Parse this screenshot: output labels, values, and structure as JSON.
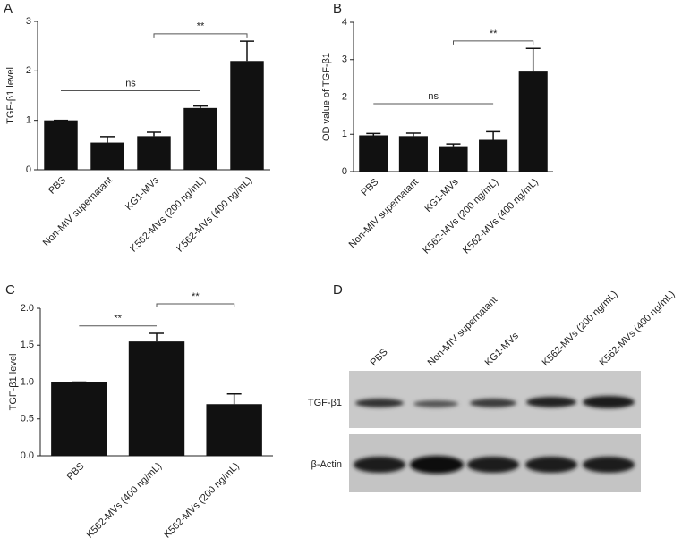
{
  "chart_data": [
    {
      "type": "bar",
      "panel_label": "A",
      "ylabel": "TGF-β1 level",
      "categories": [
        "PBS",
        "Non-MIV supernatant",
        "KG1-MVs",
        "K562-MVs (200 ng/mL)",
        "K562-MVs (400 ng/mL)"
      ],
      "values": [
        1.0,
        0.55,
        0.68,
        1.25,
        2.2
      ],
      "errors": [
        0,
        0.12,
        0.08,
        0.04,
        0.4
      ],
      "color": "#111111",
      "ylim": [
        0,
        3
      ],
      "yticks": [
        0,
        1,
        2,
        3
      ],
      "annotations": [
        {
          "text": "ns",
          "start": 0,
          "end": 3
        },
        {
          "text": "**",
          "start": 2,
          "end": 4
        }
      ]
    },
    {
      "type": "bar",
      "panel_label": "B",
      "ylabel": "OD value of TGF-β1",
      "categories": [
        "PBS",
        "Non-MIV supernatant",
        "KG1-MVs",
        "K562-MVs (200 ng/mL)",
        "K562-MVs (400 ng/mL)"
      ],
      "values": [
        0.97,
        0.95,
        0.68,
        0.85,
        2.68
      ],
      "errors": [
        0.05,
        0.08,
        0.06,
        0.22,
        0.62
      ],
      "color": "#111111",
      "ylim": [
        0,
        4
      ],
      "yticks": [
        0,
        1,
        2,
        3,
        4
      ],
      "annotations": [
        {
          "text": "ns",
          "start": 0,
          "end": 3
        },
        {
          "text": "**",
          "start": 2,
          "end": 4
        }
      ]
    },
    {
      "type": "bar",
      "panel_label": "C",
      "ylabel": "TGF-β1 level",
      "categories": [
        "PBS",
        "K562-MVs (400 ng/mL)",
        "K562-MVs (200 ng/mL)"
      ],
      "values": [
        1.0,
        1.55,
        0.7
      ],
      "errors": [
        0,
        0.11,
        0.14
      ],
      "color": "#111111",
      "ylim": [
        0,
        2
      ],
      "yticks": [
        {
          "value": 0,
          "label": "0.0"
        },
        {
          "value": 0.5,
          "label": "0.5"
        },
        {
          "value": 1,
          "label": "1.0"
        },
        {
          "value": 1.5,
          "label": "1.5"
        },
        {
          "value": 2,
          "label": "2.0"
        }
      ],
      "annotations": [
        {
          "text": "**",
          "start": 0,
          "end": 1
        },
        {
          "text": "**",
          "start": 1,
          "end": 2
        }
      ]
    }
  ],
  "blot_panel": {
    "panel_label": "D",
    "lanes": [
      "PBS",
      "Non-MIV supernatant",
      "KG1-MVs",
      "K562-MVs (200 ng/mL)",
      "K562-MVs (400 ng/mL)"
    ],
    "rows": [
      "TGF-β1",
      "β-Actin"
    ]
  }
}
